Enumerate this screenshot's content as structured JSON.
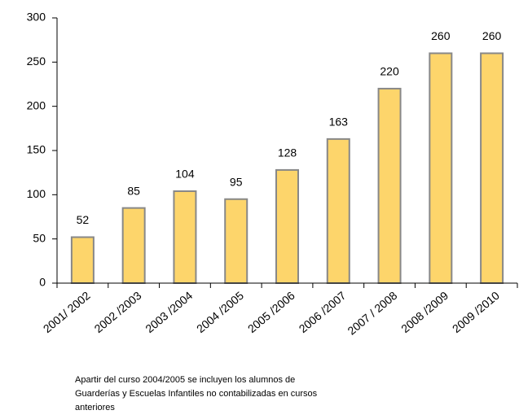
{
  "chart_data": {
    "type": "bar",
    "categories": [
      "2001/ 2002",
      "2002 /2003",
      "2003 /2004",
      "2004 /2005",
      "2005 /2006",
      "2006 /2007",
      "2007 / 2008",
      "2008 /2009",
      "2009 /2010"
    ],
    "values": [
      52,
      85,
      104,
      95,
      128,
      163,
      220,
      260,
      260
    ],
    "color": "#fdd56b",
    "ylim": [
      0,
      300
    ],
    "yticks": [
      0,
      50,
      100,
      150,
      200,
      250,
      300
    ],
    "grid": false,
    "note": [
      "Apartir del curso 2004/2005  se incluyen los alumnos de",
      "Guarderías y Escuelas Infantiles no contabilizadas  en cursos",
      "anteriores"
    ]
  }
}
